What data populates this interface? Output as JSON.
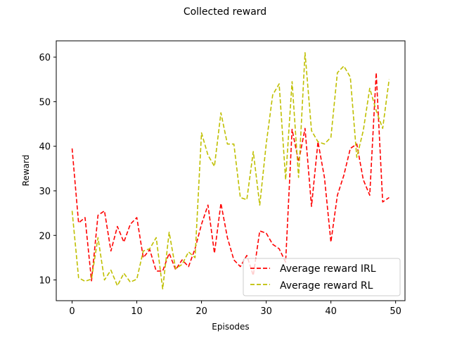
{
  "chart_data": {
    "type": "line",
    "title": "Collected reward",
    "xlabel": "Episodes",
    "ylabel": "Reward",
    "xlim": [
      -2.45,
      51.45
    ],
    "ylim": [
      5.35,
      63.65
    ],
    "xticks": [
      "0",
      "10",
      "20",
      "30",
      "40",
      "50"
    ],
    "yticks": [
      "10",
      "20",
      "30",
      "40",
      "50",
      "60"
    ],
    "grid": false,
    "legend_position": "lower-right",
    "x": [
      0,
      1,
      2,
      3,
      4,
      5,
      6,
      7,
      8,
      9,
      10,
      11,
      12,
      13,
      14,
      15,
      16,
      17,
      18,
      19,
      20,
      21,
      22,
      23,
      24,
      25,
      26,
      27,
      28,
      29,
      30,
      31,
      32,
      33,
      34,
      35,
      36,
      37,
      38,
      39,
      40,
      41,
      42,
      43,
      44,
      45,
      46,
      47,
      48,
      49
    ],
    "series": [
      {
        "name": "Average reward IRL",
        "color": "#ff0000",
        "style": "dashed",
        "values": [
          39.5,
          22.8,
          24.0,
          9.8,
          24.5,
          25.5,
          16.5,
          22.0,
          18.5,
          22.5,
          24.0,
          15.0,
          16.8,
          12.0,
          12.0,
          16.0,
          12.3,
          14.5,
          13.0,
          17.0,
          22.5,
          26.8,
          16.0,
          27.2,
          19.5,
          14.5,
          13.0,
          15.5,
          11.0,
          21.0,
          20.5,
          18.0,
          17.0,
          14.0,
          43.8,
          36.5,
          44.0,
          26.5,
          41.0,
          33.0,
          18.5,
          29.0,
          33.5,
          39.5,
          40.5,
          32.5,
          29.0,
          56.5,
          27.5,
          28.5
        ]
      },
      {
        "name": "Average reward RL",
        "color": "#bfbf00",
        "style": "dashed",
        "values": [
          25.5,
          10.5,
          9.7,
          10.2,
          19.5,
          10.0,
          12.2,
          8.7,
          11.5,
          9.5,
          10.2,
          16.5,
          17.0,
          19.5,
          8.0,
          20.7,
          12.5,
          13.5,
          16.3,
          15.0,
          43.0,
          38.0,
          35.5,
          47.5,
          40.5,
          40.5,
          28.5,
          28.0,
          38.8,
          26.8,
          40.5,
          51.5,
          54.0,
          32.5,
          54.5,
          33.0,
          61.0,
          43.5,
          41.0,
          40.5,
          42.0,
          56.5,
          58.0,
          55.5,
          37.5,
          43.5,
          53.0,
          48.0,
          44.0,
          55.0
        ]
      }
    ]
  }
}
